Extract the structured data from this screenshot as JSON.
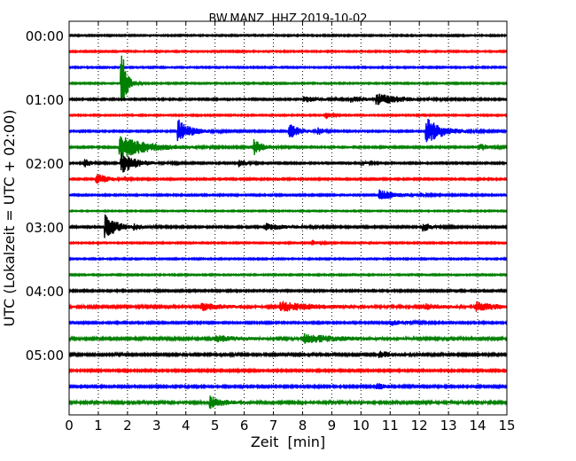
{
  "chart_data": {
    "type": "line",
    "title": "BW.MANZ..HHZ 2019-10-02",
    "xlabel": "Zeit  [min]",
    "ylabel": "UTC (Lokalzeit = UTC + 02:00)",
    "xlim": [
      0,
      15
    ],
    "x_ticks": [
      "0",
      "1",
      "2",
      "3",
      "4",
      "5",
      "6",
      "7",
      "8",
      "9",
      "10",
      "11",
      "12",
      "13",
      "14",
      "15"
    ],
    "y_tick_labels": [
      {
        "row": 0,
        "label": "00:00"
      },
      {
        "row": 4,
        "label": "01:00"
      },
      {
        "row": 8,
        "label": "02:00"
      },
      {
        "row": 12,
        "label": "03:00"
      },
      {
        "row": 16,
        "label": "04:00"
      },
      {
        "row": 20,
        "label": "05:00"
      }
    ],
    "grid": {
      "x": "dotted"
    },
    "row_interval_min": 15,
    "colors": [
      "#000000",
      "#ff0000",
      "#0000ff",
      "#008000"
    ],
    "series": [
      {
        "name": "00:00",
        "row": 0,
        "color": "#000000",
        "noise": 0.8,
        "events": []
      },
      {
        "name": "00:15",
        "row": 1,
        "color": "#ff0000",
        "noise": 0.8,
        "events": []
      },
      {
        "name": "00:30",
        "row": 2,
        "color": "#0000ff",
        "noise": 0.8,
        "events": []
      },
      {
        "name": "00:45",
        "row": 3,
        "color": "#008000",
        "noise": 0.8,
        "events": [
          {
            "t": 1.75,
            "amp": 50,
            "dur": 0.15
          }
        ]
      },
      {
        "name": "01:00",
        "row": 4,
        "color": "#000000",
        "noise": 0.9,
        "events": [
          {
            "t": 8.0,
            "amp": 3.5,
            "dur": 0.5
          },
          {
            "t": 9.6,
            "amp": 3,
            "dur": 0.6
          },
          {
            "t": 10.5,
            "amp": 6,
            "dur": 0.8
          }
        ]
      },
      {
        "name": "01:15",
        "row": 5,
        "color": "#ff0000",
        "noise": 0.8,
        "events": [
          {
            "t": 8.75,
            "amp": 5,
            "dur": 0.15
          }
        ]
      },
      {
        "name": "01:30",
        "row": 6,
        "color": "#0000ff",
        "noise": 0.9,
        "events": [
          {
            "t": 3.7,
            "amp": 14,
            "dur": 0.4
          },
          {
            "t": 7.5,
            "amp": 10,
            "dur": 0.3
          },
          {
            "t": 8.5,
            "amp": 5,
            "dur": 0.15
          },
          {
            "t": 12.2,
            "amp": 16,
            "dur": 0.5
          }
        ]
      },
      {
        "name": "01:45",
        "row": 7,
        "color": "#008000",
        "noise": 0.9,
        "events": [
          {
            "t": 1.7,
            "amp": 14,
            "dur": 0.9
          },
          {
            "t": 6.3,
            "amp": 9,
            "dur": 0.3
          },
          {
            "t": 14.0,
            "amp": 4,
            "dur": 0.4
          }
        ]
      },
      {
        "name": "02:00",
        "row": 8,
        "color": "#000000",
        "noise": 0.9,
        "events": [
          {
            "t": 0.5,
            "amp": 5,
            "dur": 0.2
          },
          {
            "t": 1.75,
            "amp": 12,
            "dur": 0.5
          },
          {
            "t": 5.8,
            "amp": 5,
            "dur": 0.2
          },
          {
            "t": 10.0,
            "amp": 3,
            "dur": 0.15
          }
        ]
      },
      {
        "name": "02:15",
        "row": 9,
        "color": "#ff0000",
        "noise": 0.9,
        "events": [
          {
            "t": 0.9,
            "amp": 6,
            "dur": 0.4
          }
        ]
      },
      {
        "name": "02:30",
        "row": 10,
        "color": "#0000ff",
        "noise": 0.9,
        "events": [
          {
            "t": 10.6,
            "amp": 6,
            "dur": 0.6
          }
        ]
      },
      {
        "name": "02:45",
        "row": 11,
        "color": "#008000",
        "noise": 0.7,
        "events": []
      },
      {
        "name": "03:00",
        "row": 12,
        "color": "#000000",
        "noise": 1.0,
        "events": [
          {
            "t": 1.2,
            "amp": 14,
            "dur": 0.4
          },
          {
            "t": 2.2,
            "amp": 3,
            "dur": 0.2
          },
          {
            "t": 6.7,
            "amp": 4,
            "dur": 0.6
          },
          {
            "t": 12.1,
            "amp": 5,
            "dur": 0.3
          }
        ]
      },
      {
        "name": "03:15",
        "row": 13,
        "color": "#ff0000",
        "noise": 0.8,
        "events": [
          {
            "t": 8.3,
            "amp": 3,
            "dur": 0.2
          }
        ]
      },
      {
        "name": "03:30",
        "row": 14,
        "color": "#0000ff",
        "noise": 0.8,
        "events": []
      },
      {
        "name": "03:45",
        "row": 15,
        "color": "#008000",
        "noise": 0.8,
        "events": []
      },
      {
        "name": "04:00",
        "row": 16,
        "color": "#000000",
        "noise": 1.0,
        "events": []
      },
      {
        "name": "04:15",
        "row": 17,
        "color": "#ff0000",
        "noise": 1.3,
        "events": [
          {
            "t": 4.5,
            "amp": 4,
            "dur": 0.7
          },
          {
            "t": 7.2,
            "amp": 6,
            "dur": 1.0
          },
          {
            "t": 12.2,
            "amp": 3,
            "dur": 0.5
          },
          {
            "t": 13.9,
            "amp": 6,
            "dur": 0.6
          }
        ]
      },
      {
        "name": "04:30",
        "row": 18,
        "color": "#0000ff",
        "noise": 1.0,
        "events": [
          {
            "t": 11.0,
            "amp": 3,
            "dur": 0.5
          }
        ]
      },
      {
        "name": "04:45",
        "row": 19,
        "color": "#008000",
        "noise": 1.3,
        "events": [
          {
            "t": 5.0,
            "amp": 3.5,
            "dur": 0.8
          },
          {
            "t": 8.0,
            "amp": 5,
            "dur": 1.1
          }
        ]
      },
      {
        "name": "05:00",
        "row": 20,
        "color": "#000000",
        "noise": 1.2,
        "events": [
          {
            "t": 10.6,
            "amp": 4,
            "dur": 0.4
          }
        ]
      },
      {
        "name": "05:15",
        "row": 21,
        "color": "#ff0000",
        "noise": 1.1,
        "events": []
      },
      {
        "name": "05:30",
        "row": 22,
        "color": "#0000ff",
        "noise": 1.1,
        "events": [
          {
            "t": 10.5,
            "amp": 4,
            "dur": 0.3
          }
        ]
      },
      {
        "name": "05:45",
        "row": 23,
        "color": "#008000",
        "noise": 1.4,
        "events": [
          {
            "t": 4.8,
            "amp": 7,
            "dur": 0.4
          }
        ]
      }
    ]
  }
}
